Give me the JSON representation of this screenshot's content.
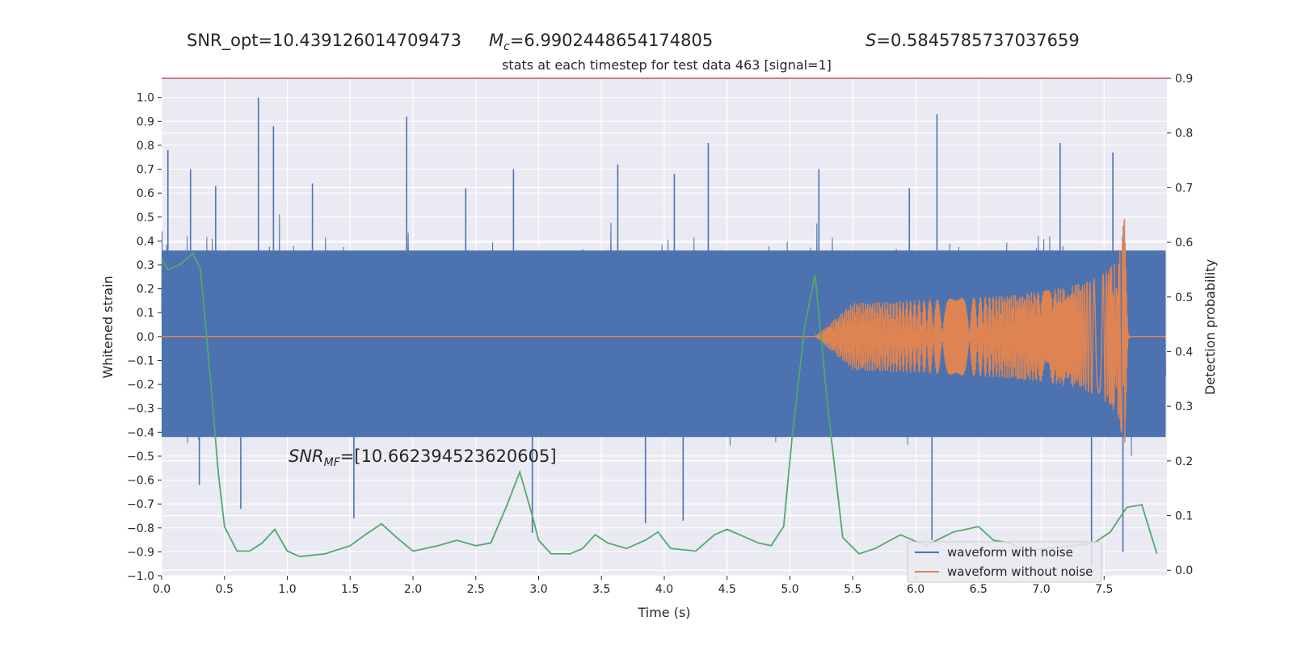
{
  "header": {
    "snr_opt_text": "SNR_opt=10.439126014709473",
    "mc_symbol": "M",
    "mc_sub": "c",
    "mc_value": "=6.9902448654174805",
    "s_symbol": "S",
    "s_value": "=0.5845785737037659"
  },
  "annotation": {
    "snr_mf_symbol": "SNR",
    "snr_mf_sub": "MF",
    "snr_mf_value": "=[10.662394523620605]"
  },
  "colors": {
    "axes_bg": "#eaeaf2",
    "grid": "#ffffff",
    "noise": "#4c72b0",
    "clean": "#dd8452",
    "prob": "#55a868",
    "threshold": "#c44e52",
    "text": "#262626"
  },
  "chart_data": {
    "type": "line",
    "title": "stats at each timestep for test data 463 [signal=1]",
    "xlabel": "Time (s)",
    "ylabel": "Whitened strain",
    "ylabel_right": "Detection probability",
    "xlim": [
      0.0,
      8.0
    ],
    "ylim": [
      -1.0,
      1.08
    ],
    "ylim_right": [
      -0.01,
      0.9
    ],
    "x_ticks": [
      "0.0",
      "0.5",
      "1.0",
      "1.5",
      "2.0",
      "2.5",
      "3.0",
      "3.5",
      "4.0",
      "4.5",
      "5.0",
      "5.5",
      "6.0",
      "6.5",
      "7.0",
      "7.5"
    ],
    "y_ticks": [
      "1.0",
      "0.9",
      "0.8",
      "0.7",
      "0.6",
      "0.5",
      "0.4",
      "0.3",
      "0.2",
      "0.1",
      "0.0",
      "−0.1",
      "−0.2",
      "−0.3",
      "−0.4",
      "−0.5",
      "−0.6",
      "−0.7",
      "−0.8",
      "−0.9",
      "−1.0"
    ],
    "y_ticks_right": [
      "0.9",
      "0.8",
      "0.7",
      "0.6",
      "0.5",
      "0.4",
      "0.3",
      "0.2",
      "0.1",
      "0.0"
    ],
    "grid": true,
    "legend_position": "lower-right",
    "legend": [
      "waveform with noise",
      "waveform without noise"
    ],
    "threshold_line": {
      "y_right": 0.9
    },
    "series": [
      {
        "name": "waveform with noise",
        "kind": "noise",
        "envelope_upper": 0.36,
        "envelope_lower": -0.42,
        "spikes": [
          {
            "x": 0.05,
            "y": 0.78
          },
          {
            "x": 0.23,
            "y": 0.7
          },
          {
            "x": 0.43,
            "y": 0.63
          },
          {
            "x": 0.77,
            "y": 1.0
          },
          {
            "x": 0.89,
            "y": 0.88
          },
          {
            "x": 1.2,
            "y": 0.64
          },
          {
            "x": 1.95,
            "y": 0.92
          },
          {
            "x": 2.42,
            "y": 0.62
          },
          {
            "x": 2.8,
            "y": 0.7
          },
          {
            "x": 3.63,
            "y": 0.72
          },
          {
            "x": 4.08,
            "y": 0.68
          },
          {
            "x": 4.35,
            "y": 0.81
          },
          {
            "x": 5.23,
            "y": 0.7
          },
          {
            "x": 5.95,
            "y": 0.62
          },
          {
            "x": 6.17,
            "y": 0.93
          },
          {
            "x": 7.15,
            "y": 0.81
          },
          {
            "x": 7.57,
            "y": 0.77
          },
          {
            "x": 0.3,
            "y": -0.62
          },
          {
            "x": 0.63,
            "y": -0.72
          },
          {
            "x": 1.53,
            "y": -0.76
          },
          {
            "x": 2.95,
            "y": -0.82
          },
          {
            "x": 3.85,
            "y": -0.78
          },
          {
            "x": 4.15,
            "y": -0.77
          },
          {
            "x": 6.13,
            "y": -0.85
          },
          {
            "x": 7.4,
            "y": -0.96
          },
          {
            "x": 7.65,
            "y": -0.9
          }
        ]
      },
      {
        "name": "waveform without noise",
        "kind": "chirp",
        "onset": 5.2,
        "merger": 7.66,
        "peak_amplitude": 0.52
      },
      {
        "name": "Detection probability",
        "axis": "right",
        "x": [
          0.0,
          0.05,
          0.15,
          0.25,
          0.31,
          0.4,
          0.45,
          0.5,
          0.6,
          0.7,
          0.8,
          0.9,
          1.0,
          1.1,
          1.3,
          1.5,
          1.62,
          1.75,
          1.87,
          2.0,
          2.2,
          2.35,
          2.5,
          2.62,
          2.75,
          2.85,
          2.95,
          3.0,
          3.1,
          3.25,
          3.35,
          3.45,
          3.55,
          3.7,
          3.85,
          3.95,
          4.05,
          4.25,
          4.4,
          4.5,
          4.75,
          4.85,
          4.95,
          5.02,
          5.12,
          5.2,
          5.3,
          5.42,
          5.55,
          5.68,
          5.88,
          6.08,
          6.3,
          6.5,
          6.62,
          6.75,
          6.88,
          7.05,
          7.25,
          7.42,
          7.55,
          7.68,
          7.8,
          7.92
        ],
        "y": [
          0.57,
          0.55,
          0.56,
          0.58,
          0.55,
          0.32,
          0.18,
          0.08,
          0.035,
          0.035,
          0.05,
          0.075,
          0.035,
          0.025,
          0.03,
          0.045,
          0.065,
          0.085,
          0.06,
          0.035,
          0.045,
          0.055,
          0.045,
          0.05,
          0.12,
          0.18,
          0.1,
          0.055,
          0.03,
          0.03,
          0.04,
          0.065,
          0.05,
          0.04,
          0.055,
          0.07,
          0.04,
          0.035,
          0.065,
          0.075,
          0.05,
          0.045,
          0.08,
          0.25,
          0.45,
          0.54,
          0.3,
          0.06,
          0.03,
          0.04,
          0.065,
          0.045,
          0.07,
          0.08,
          0.055,
          0.05,
          0.035,
          0.04,
          0.045,
          0.05,
          0.07,
          0.115,
          0.12,
          0.03
        ]
      }
    ]
  }
}
